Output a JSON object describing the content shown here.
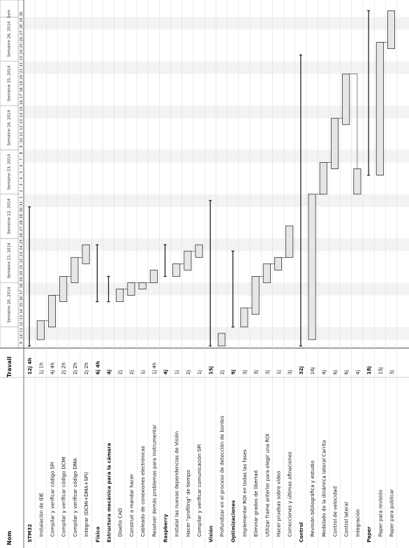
{
  "chart_data": {
    "type": "gantt",
    "columns": [
      "Nom",
      "Travail"
    ],
    "weeks": [
      "Semaine 20, 2014",
      "Semaine 21, 2014",
      "Semaine 22, 2014",
      "Semaine 23, 2014",
      "Semaine 24, 2014",
      "Semaine 25, 2014",
      "Semaine 26, 2014",
      "Sem"
    ],
    "days": [
      "9",
      "10",
      "11",
      "12",
      "13",
      "14",
      "15",
      "16",
      "17",
      "18",
      "19",
      "20",
      "21",
      "22",
      "23",
      "24",
      "25",
      "26",
      "27",
      "28",
      "29",
      "30",
      "31",
      "1",
      "2",
      "3",
      "4",
      "5",
      "6",
      "7",
      "8",
      "9",
      "10",
      "11",
      "12",
      "13",
      "14",
      "15",
      "16",
      "17",
      "18",
      "19",
      "20",
      "21",
      "22",
      "23",
      "24",
      "25",
      "26",
      "27",
      "28",
      "29",
      "30"
    ],
    "date_range": [
      "2014-05-09",
      "2014-06-30"
    ],
    "tasks": [
      {
        "name": "STM32",
        "work": "12j 4h",
        "group": true,
        "start": "2014-05-09",
        "end": "2014-05-30"
      },
      {
        "name": "Instalación de IDE",
        "work": "1j 1h",
        "start": "2014-05-10",
        "end": "2014-05-12"
      },
      {
        "name": "Compilar y verificar código SPI",
        "work": "4j 4h",
        "start": "2014-05-12",
        "end": "2014-05-16"
      },
      {
        "name": "Compilar y verificar código DCMI",
        "work": "2j 2h",
        "start": "2014-05-16",
        "end": "2014-05-19"
      },
      {
        "name": "Compilar y verificar código DMA",
        "work": "2j 2h",
        "start": "2014-05-19",
        "end": "2014-05-22"
      },
      {
        "name": "Integrar (DCMI+DMA+SPI)",
        "work": "2j 2h",
        "start": "2014-05-22",
        "end": "2014-05-24"
      },
      {
        "name": "Físico",
        "work": "6j 4h",
        "group": true,
        "start": "2014-05-16",
        "end": "2014-05-24"
      },
      {
        "name": "Estructura mecánica para la cámara",
        "work": "4j",
        "group": true,
        "start": "2014-05-16",
        "end": "2014-05-19"
      },
      {
        "name": "Diseño CAD",
        "work": "2j",
        "start": "2014-05-16",
        "end": "2014-05-17"
      },
      {
        "name": "Construir o mandar hacer",
        "work": "2j",
        "start": "2014-05-17",
        "end": "2014-05-18"
      },
      {
        "name": "Cableado de conexiones electrónicas",
        "work": "1j",
        "start": "2014-05-18",
        "end": "2014-05-18"
      },
      {
        "name": "Resolver demás problemas para instrumentar",
        "work": "1j 4h",
        "start": "2014-05-19",
        "end": "2014-05-20"
      },
      {
        "name": "Raspberry",
        "work": "4j",
        "group": true,
        "start": "2014-05-20",
        "end": "2014-05-24"
      },
      {
        "name": "Instalar las nuevas dependencias de Visión",
        "work": "1j",
        "start": "2014-05-20",
        "end": "2014-05-21"
      },
      {
        "name": "Hacer \"profiling\" de tiempo",
        "work": "2j",
        "start": "2014-05-21",
        "end": "2014-05-23"
      },
      {
        "name": "Compilar y verificar comunicación SPI",
        "work": "1j",
        "start": "2014-05-23",
        "end": "2014-05-24"
      },
      {
        "name": "Visión",
        "work": "15j",
        "group": true,
        "start": "2014-05-09",
        "end": "2014-05-31"
      },
      {
        "name": "Profundizar en el proceso de detección de bordes",
        "work": "2j",
        "start": "2014-05-09",
        "end": "2014-05-10"
      },
      {
        "name": "Optimizaciones",
        "work": "9j",
        "group": true,
        "start": "2014-05-12",
        "end": "2014-05-23"
      },
      {
        "name": "Implementar ROI en todas las fases",
        "work": "3j",
        "start": "2014-05-12",
        "end": "2014-05-14"
      },
      {
        "name": "Eliminar grados de libertad",
        "work": "3j",
        "start": "2014-05-14",
        "end": "2014-05-19"
      },
      {
        "name": "Utilizar frame anterior para elegir una ROI",
        "work": "3j",
        "start": "2014-05-19",
        "end": "2014-05-21"
      },
      {
        "name": "Hacer pruebas sobre video",
        "work": "1j",
        "start": "2014-05-21",
        "end": "2014-05-22"
      },
      {
        "name": "Correcciones y últimas afinaciones",
        "work": "3j",
        "start": "2014-05-23",
        "end": "2014-05-27"
      },
      {
        "name": "Control",
        "work": "32j",
        "group": true,
        "start": "2014-05-09",
        "end": "2014-06-23"
      },
      {
        "name": "Revisión bibliográfica y estudio",
        "work": "16j",
        "start": "2014-05-10",
        "end": "2014-06-01"
      },
      {
        "name": "Modelado de la dinámica lateral Carrita",
        "work": "4j",
        "start": "2014-06-02",
        "end": "2014-06-06"
      },
      {
        "name": "Control de velocidad",
        "work": "6j",
        "start": "2014-06-06",
        "end": "2014-06-13"
      },
      {
        "name": "Control lateral",
        "work": "6j",
        "start": "2014-06-13",
        "end": "2014-06-20"
      },
      {
        "name": "Integración",
        "work": "4j",
        "start": "2014-06-02",
        "end": "2014-06-05"
      },
      {
        "name": "Paper",
        "work": "18j",
        "group": true,
        "start": "2014-06-05",
        "end": "2014-06-30"
      },
      {
        "name": "Paper para revisión",
        "work": "15j",
        "start": "2014-06-05",
        "end": "2014-06-25"
      },
      {
        "name": "Paper para publicar",
        "work": "3j",
        "start": "2014-06-25",
        "end": "2014-06-30"
      }
    ]
  }
}
